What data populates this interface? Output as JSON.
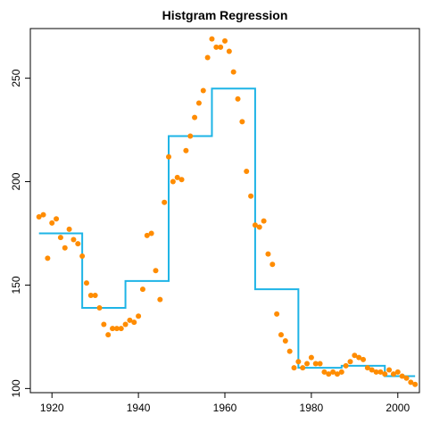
{
  "chart_data": {
    "type": "scatter",
    "title": "Histgram Regression",
    "xlabel": "",
    "ylabel": "",
    "xlim": [
      1915,
      2005
    ],
    "ylim": [
      98,
      274
    ],
    "x_ticks": [
      1920,
      1940,
      1960,
      1980,
      2000
    ],
    "y_ticks": [
      100,
      150,
      200,
      250
    ],
    "grid": false,
    "colors": {
      "points": "#ff8c00",
      "step_line": "#1eb4e6"
    },
    "points": {
      "x": [
        1917,
        1918,
        1919,
        1920,
        1921,
        1922,
        1923,
        1924,
        1925,
        1926,
        1927,
        1928,
        1929,
        1930,
        1931,
        1932,
        1933,
        1934,
        1935,
        1936,
        1937,
        1938,
        1939,
        1940,
        1941,
        1942,
        1943,
        1944,
        1945,
        1946,
        1947,
        1948,
        1949,
        1950,
        1951,
        1952,
        1953,
        1954,
        1955,
        1956,
        1957,
        1958,
        1959,
        1960,
        1961,
        1962,
        1963,
        1964,
        1965,
        1966,
        1967,
        1968,
        1969,
        1970,
        1971,
        1972,
        1973,
        1974,
        1975,
        1976,
        1977,
        1978,
        1979,
        1980,
        1981,
        1982,
        1983,
        1984,
        1985,
        1986,
        1987,
        1988,
        1989,
        1990,
        1991,
        1992,
        1993,
        1994,
        1995,
        1996,
        1997,
        1998,
        1999,
        2000,
        2001,
        2002,
        2003,
        2004
      ],
      "y": [
        183,
        184,
        163,
        180,
        182,
        173,
        168,
        177,
        172,
        170,
        164,
        151,
        145,
        145,
        139,
        131,
        126,
        129,
        129,
        129,
        131,
        133,
        132,
        135,
        148,
        174,
        175,
        157,
        143,
        190,
        212,
        200,
        202,
        201,
        215,
        222,
        231,
        238,
        244,
        260,
        269,
        265,
        265,
        268,
        263,
        253,
        240,
        229,
        205,
        193,
        179,
        178,
        181,
        165,
        160,
        136,
        126,
        123,
        118,
        110,
        113,
        110,
        112,
        115,
        112,
        112,
        108,
        107,
        108,
        107,
        108,
        111,
        113,
        116,
        115,
        114,
        110,
        109,
        108,
        108,
        107,
        109,
        107,
        108,
        106,
        105,
        103,
        102
      ]
    },
    "step_line": {
      "breaks": [
        1917,
        1927,
        1937,
        1947,
        1957,
        1967,
        1977,
        1987,
        1997,
        2004
      ],
      "levels": [
        175,
        139,
        152,
        222,
        245,
        148,
        110,
        111,
        106
      ]
    }
  }
}
